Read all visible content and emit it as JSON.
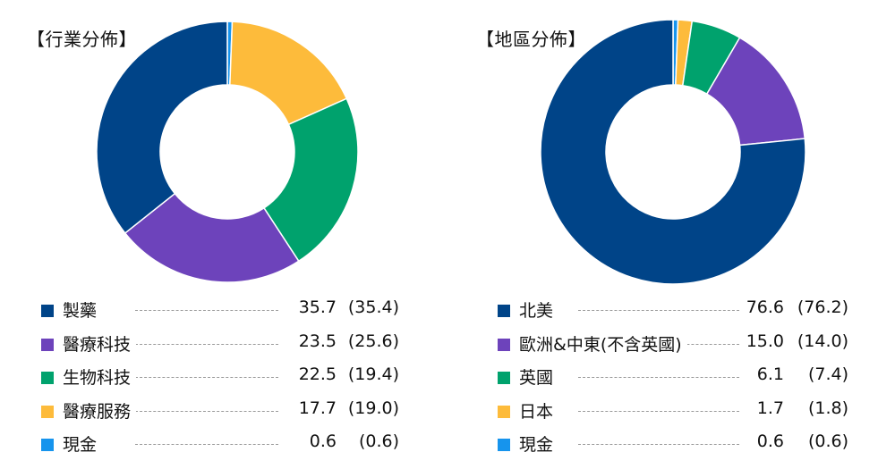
{
  "chart_data": [
    {
      "type": "pie",
      "title": "【行業分佈】",
      "categories": [
        "製藥",
        "醫療科技",
        "生物科技",
        "醫療服務",
        "現金"
      ],
      "values": [
        35.7,
        23.5,
        22.5,
        17.7,
        0.6
      ],
      "previous_values": [
        35.4,
        25.6,
        19.4,
        19.0,
        0.6
      ],
      "value_labels": [
        "35.7",
        "23.5",
        "22.5",
        "17.7",
        "0.6"
      ],
      "previous_labels": [
        "(35.4)",
        "(25.6)",
        "(19.4)",
        "(19.0)",
        "(0.6)"
      ],
      "colors": [
        "#004488",
        "#6d43bb",
        "#00a26d",
        "#fdbb3b",
        "#1694ed"
      ],
      "slice_order": [
        4,
        3,
        2,
        1,
        0
      ]
    },
    {
      "type": "pie",
      "title": "【地區分佈】",
      "categories": [
        "北美",
        "歐洲&中東(不含英國)",
        "英國",
        "日本",
        "現金"
      ],
      "values": [
        76.6,
        15.0,
        6.1,
        1.7,
        0.6
      ],
      "previous_values": [
        76.2,
        14.0,
        7.4,
        1.8,
        0.6
      ],
      "value_labels": [
        "76.6",
        "15.0",
        "6.1",
        "1.7",
        "0.6"
      ],
      "previous_labels": [
        "(76.2)",
        "(14.0)",
        "(7.4)",
        "(1.8)",
        "(0.6)"
      ],
      "colors": [
        "#004488",
        "#6d43bb",
        "#00a26d",
        "#fdbb3b",
        "#1694ed"
      ],
      "slice_order": [
        4,
        3,
        2,
        1,
        0
      ]
    }
  ]
}
